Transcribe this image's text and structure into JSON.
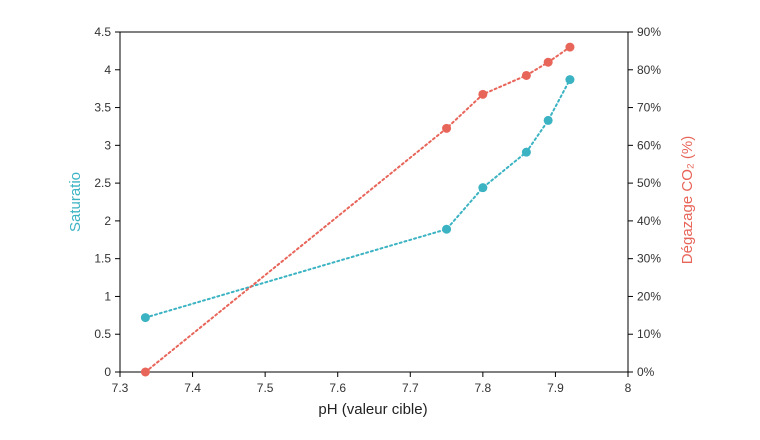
{
  "chart_data": {
    "type": "line",
    "title": "",
    "xlabel": "pH (valeur cible)",
    "ylabel_left": "Saturatio",
    "ylabel_right": "Dégazage CO₂ (%)",
    "xlim": [
      7.3,
      8.0
    ],
    "ylim_left": [
      0,
      4.5
    ],
    "ylim_right": [
      0,
      90
    ],
    "x_ticks": [
      "7.3",
      "7.4",
      "7.5",
      "7.6",
      "7.7",
      "7.8",
      "7.9",
      "8"
    ],
    "y_left_ticks": [
      "0",
      "0.5",
      "1",
      "1.5",
      "2",
      "2.5",
      "3",
      "3.5",
      "4",
      "4.5"
    ],
    "y_right_ticks": [
      "0%",
      "10%",
      "20%",
      "30%",
      "40%",
      "50%",
      "60%",
      "70%",
      "80%",
      "90%"
    ],
    "grid": false,
    "legend": "none",
    "series": [
      {
        "axis": "left",
        "color": "#3bb3c3",
        "x": [
          7.335,
          7.75,
          7.8,
          7.86,
          7.89,
          7.92
        ],
        "values": [
          0.72,
          1.89,
          2.44,
          2.91,
          3.33,
          3.87
        ]
      },
      {
        "axis": "right",
        "color": "#e8655a",
        "x": [
          7.335,
          7.75,
          7.8,
          7.86,
          7.89,
          7.92
        ],
        "values": [
          0,
          64.5,
          73.5,
          78.5,
          82,
          86
        ]
      }
    ]
  }
}
